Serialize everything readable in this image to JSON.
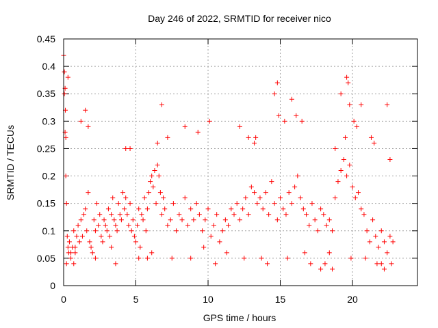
{
  "chart_data": {
    "type": "scatter",
    "title": "Day 246 of 2022, SRMTID for receiver nico",
    "xlabel": "GPS time / hours",
    "ylabel": "SRMTID / TECUs",
    "xlim": [
      0,
      24.5
    ],
    "ylim": [
      0,
      0.45
    ],
    "x_ticks": [
      0,
      5,
      10,
      15,
      20
    ],
    "x_tick_labels": [
      "0",
      "5",
      "10",
      "15",
      "20"
    ],
    "y_ticks": [
      0,
      0.05,
      0.1,
      0.15,
      0.2,
      0.25,
      0.3,
      0.35,
      0.4,
      0.45
    ],
    "y_tick_labels": [
      "0",
      "0.05",
      "0.1",
      "0.15",
      "0.2",
      "0.25",
      "0.3",
      "0.35",
      "0.4",
      "0.45"
    ],
    "grid": true,
    "marker": "plus",
    "color": "#ff0000",
    "series": [
      {
        "name": "SRMTID",
        "x": [
          0.0,
          0.05,
          0.1,
          0.12,
          0.15,
          0.2,
          0.25,
          0.3,
          0.35,
          0.4,
          0.5,
          0.6,
          0.7,
          0.8,
          0.9,
          1.0,
          1.1,
          1.2,
          1.3,
          1.4,
          1.5,
          1.6,
          1.7,
          1.8,
          1.9,
          2.0,
          2.1,
          2.2,
          2.3,
          2.4,
          2.5,
          2.6,
          2.7,
          2.8,
          2.9,
          3.0,
          3.1,
          3.2,
          3.3,
          3.4,
          3.5,
          3.6,
          3.7,
          3.8,
          3.9,
          4.0,
          4.1,
          4.2,
          4.3,
          4.4,
          4.5,
          4.6,
          4.7,
          4.8,
          4.9,
          5.0,
          5.1,
          5.2,
          5.3,
          5.4,
          5.5,
          5.6,
          5.7,
          5.8,
          5.9,
          6.0,
          6.1,
          6.2,
          6.3,
          6.4,
          6.5,
          6.6,
          6.7,
          6.8,
          6.9,
          7.0,
          7.2,
          7.4,
          7.6,
          7.8,
          8.0,
          8.2,
          8.4,
          8.6,
          8.8,
          9.0,
          9.2,
          9.4,
          9.6,
          9.8,
          10.0,
          10.2,
          10.4,
          10.6,
          10.8,
          11.0,
          11.2,
          11.4,
          11.6,
          11.8,
          12.0,
          12.2,
          12.4,
          12.6,
          12.8,
          13.0,
          13.2,
          13.4,
          13.6,
          13.8,
          14.0,
          14.2,
          14.4,
          14.6,
          14.8,
          15.0,
          15.2,
          15.4,
          15.6,
          15.8,
          16.0,
          16.2,
          16.4,
          16.6,
          16.8,
          17.0,
          17.2,
          17.4,
          17.6,
          17.8,
          18.0,
          18.2,
          18.4,
          18.6,
          18.8,
          19.0,
          19.2,
          19.4,
          19.6,
          19.8,
          20.0,
          20.2,
          20.4,
          20.6,
          20.8,
          21.0,
          21.2,
          21.4,
          21.6,
          21.8,
          22.0,
          22.2,
          22.4,
          22.6,
          22.8,
          0.05,
          0.1,
          0.15,
          0.3,
          0.5,
          0.7,
          1.2,
          1.5,
          1.7,
          3.3,
          4.3,
          5.2,
          6.5,
          6.8,
          7.2,
          8.4,
          9.3,
          10.1,
          12.2,
          12.8,
          13.2,
          13.3,
          14.6,
          14.8,
          14.9,
          15.3,
          15.8,
          16.1,
          16.5,
          17.8,
          18.4,
          18.8,
          19.2,
          19.5,
          19.6,
          19.7,
          19.8,
          20.1,
          20.3,
          20.6,
          21.3,
          21.5,
          22.0,
          22.4,
          22.6,
          0.2,
          0.8,
          2.2,
          3.6,
          4.6,
          5.8,
          6.1,
          7.5,
          8.8,
          9.7,
          10.5,
          11.3,
          12.5,
          13.7,
          14.1,
          15.5,
          16.7,
          17.1,
          18.1,
          18.6,
          19.9,
          20.9,
          21.7,
          22.2,
          22.7
        ],
        "y": [
          0.42,
          0.39,
          0.28,
          0.32,
          0.2,
          0.15,
          0.09,
          0.07,
          0.06,
          0.08,
          0.05,
          0.07,
          0.1,
          0.06,
          0.09,
          0.11,
          0.08,
          0.12,
          0.09,
          0.13,
          0.14,
          0.1,
          0.17,
          0.08,
          0.07,
          0.06,
          0.12,
          0.1,
          0.15,
          0.11,
          0.13,
          0.09,
          0.08,
          0.12,
          0.11,
          0.1,
          0.14,
          0.09,
          0.13,
          0.16,
          0.12,
          0.11,
          0.1,
          0.15,
          0.13,
          0.12,
          0.17,
          0.14,
          0.16,
          0.13,
          0.11,
          0.15,
          0.1,
          0.12,
          0.09,
          0.08,
          0.11,
          0.14,
          0.07,
          0.13,
          0.12,
          0.16,
          0.1,
          0.14,
          0.17,
          0.19,
          0.2,
          0.18,
          0.21,
          0.15,
          0.22,
          0.2,
          0.17,
          0.13,
          0.16,
          0.14,
          0.11,
          0.12,
          0.15,
          0.1,
          0.13,
          0.12,
          0.16,
          0.11,
          0.14,
          0.12,
          0.15,
          0.13,
          0.1,
          0.12,
          0.14,
          0.09,
          0.11,
          0.13,
          0.08,
          0.1,
          0.12,
          0.11,
          0.14,
          0.13,
          0.15,
          0.12,
          0.14,
          0.16,
          0.13,
          0.18,
          0.17,
          0.15,
          0.16,
          0.14,
          0.17,
          0.13,
          0.19,
          0.15,
          0.12,
          0.16,
          0.14,
          0.13,
          0.17,
          0.15,
          0.18,
          0.2,
          0.16,
          0.14,
          0.13,
          0.11,
          0.15,
          0.12,
          0.1,
          0.14,
          0.13,
          0.11,
          0.12,
          0.1,
          0.16,
          0.19,
          0.21,
          0.23,
          0.2,
          0.22,
          0.18,
          0.16,
          0.17,
          0.14,
          0.13,
          0.1,
          0.08,
          0.12,
          0.09,
          0.07,
          0.1,
          0.08,
          0.06,
          0.09,
          0.08,
          0.35,
          0.36,
          0.27,
          0.38,
          0.06,
          0.04,
          0.3,
          0.32,
          0.29,
          0.07,
          0.25,
          0.05,
          0.26,
          0.33,
          0.27,
          0.29,
          0.28,
          0.3,
          0.29,
          0.27,
          0.26,
          0.27,
          0.35,
          0.37,
          0.31,
          0.3,
          0.34,
          0.31,
          0.3,
          0.03,
          0.06,
          0.25,
          0.35,
          0.27,
          0.38,
          0.37,
          0.33,
          0.3,
          0.29,
          0.33,
          0.27,
          0.26,
          0.04,
          0.33,
          0.23,
          0.04,
          0.07,
          0.05,
          0.04,
          0.25,
          0.05,
          0.06,
          0.05,
          0.05,
          0.07,
          0.04,
          0.06,
          0.05,
          0.05,
          0.04,
          0.05,
          0.06,
          0.04,
          0.04,
          0.03,
          0.05,
          0.05,
          0.04,
          0.03,
          0.04
        ]
      }
    ]
  }
}
